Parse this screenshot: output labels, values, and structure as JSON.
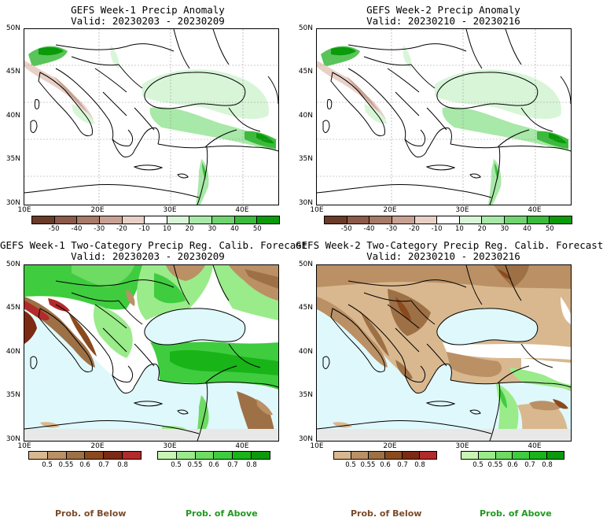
{
  "panels": [
    {
      "title_line1": "GEFS Week-1 Precip Anomaly",
      "title_line2": "Valid: 20230203 - 20230209",
      "type": "anomaly"
    },
    {
      "title_line1": "GEFS Week-2 Precip Anomaly",
      "title_line2": "Valid: 20230210 - 20230216",
      "type": "anomaly"
    },
    {
      "title_line1": "GEFS Week-1 Two-Category Precip Reg. Calib. Forecast",
      "title_line2": "Valid: 20230203 - 20230209",
      "type": "probability"
    },
    {
      "title_line1": "GEFS Week-2 Two-Category Precip Reg. Calib. Forecast",
      "title_line2": "Valid: 20230210 - 20230216",
      "type": "probability"
    }
  ],
  "axes": {
    "lat_labels": [
      "50N",
      "45N",
      "40N",
      "35N",
      "30N"
    ],
    "lon_labels": [
      "10E",
      "20E",
      "30E",
      "40E"
    ]
  },
  "anomaly_colorbar": {
    "labels": [
      "-50",
      "-40",
      "-30",
      "-20",
      "-10",
      "10",
      "20",
      "30",
      "40",
      "50"
    ],
    "colors": [
      "#6b3b2a",
      "#8c5a48",
      "#a87a68",
      "#c9a194",
      "#e8d0c6",
      "#ffffff",
      "#d8f5d8",
      "#a8e8a8",
      "#70d470",
      "#3cba3c",
      "#0a9a0a"
    ]
  },
  "prob_below_colorbar": {
    "labels": [
      "0.5",
      "0.55",
      "0.6",
      "0.7",
      "0.8"
    ],
    "colors": [
      "#d9b88f",
      "#bb9065",
      "#9e7045",
      "#8a4a1e",
      "#7b2a14",
      "#b22a2a"
    ]
  },
  "prob_above_colorbar": {
    "labels": [
      "0.5",
      "0.55",
      "0.6",
      "0.7",
      "0.8"
    ],
    "colors": [
      "#c8f5b4",
      "#9aeb8a",
      "#6edb62",
      "#3fcc3f",
      "#18b418",
      "#0a9a0a"
    ]
  },
  "footer": {
    "below_label": "Prob. of Below",
    "above_label": "Prob. of Above",
    "below_color": "#7a4a2a",
    "above_color": "#1f9a1f"
  },
  "map_colors": {
    "sea_prob": "#dff8fc",
    "no_data": "#e8e8e8",
    "land": "#ffffff"
  }
}
